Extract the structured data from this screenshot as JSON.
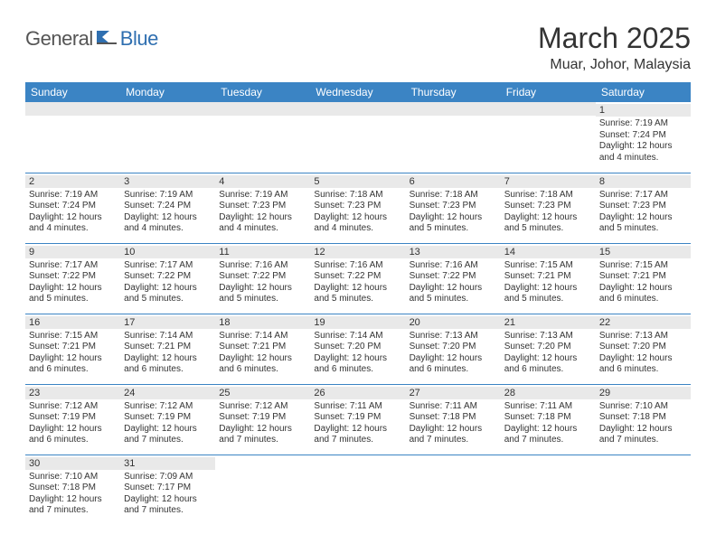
{
  "logo": {
    "word1": "General",
    "word2": "Blue"
  },
  "title": "March 2025",
  "location": "Muar, Johor, Malaysia",
  "colors": {
    "header_bg": "#3b84c4",
    "header_text": "#ffffff",
    "cell_border": "#3b84c4",
    "daynum_bg": "#e9e9e9",
    "text": "#333333",
    "logo_gray": "#555555",
    "logo_blue": "#2f6fb0"
  },
  "weekdays": [
    "Sunday",
    "Monday",
    "Tuesday",
    "Wednesday",
    "Thursday",
    "Friday",
    "Saturday"
  ],
  "weeks": [
    [
      null,
      null,
      null,
      null,
      null,
      null,
      {
        "n": "1",
        "sunrise": "7:19 AM",
        "sunset": "7:24 PM",
        "dl": "12 hours and 4 minutes."
      }
    ],
    [
      {
        "n": "2",
        "sunrise": "7:19 AM",
        "sunset": "7:24 PM",
        "dl": "12 hours and 4 minutes."
      },
      {
        "n": "3",
        "sunrise": "7:19 AM",
        "sunset": "7:24 PM",
        "dl": "12 hours and 4 minutes."
      },
      {
        "n": "4",
        "sunrise": "7:19 AM",
        "sunset": "7:23 PM",
        "dl": "12 hours and 4 minutes."
      },
      {
        "n": "5",
        "sunrise": "7:18 AM",
        "sunset": "7:23 PM",
        "dl": "12 hours and 4 minutes."
      },
      {
        "n": "6",
        "sunrise": "7:18 AM",
        "sunset": "7:23 PM",
        "dl": "12 hours and 5 minutes."
      },
      {
        "n": "7",
        "sunrise": "7:18 AM",
        "sunset": "7:23 PM",
        "dl": "12 hours and 5 minutes."
      },
      {
        "n": "8",
        "sunrise": "7:17 AM",
        "sunset": "7:23 PM",
        "dl": "12 hours and 5 minutes."
      }
    ],
    [
      {
        "n": "9",
        "sunrise": "7:17 AM",
        "sunset": "7:22 PM",
        "dl": "12 hours and 5 minutes."
      },
      {
        "n": "10",
        "sunrise": "7:17 AM",
        "sunset": "7:22 PM",
        "dl": "12 hours and 5 minutes."
      },
      {
        "n": "11",
        "sunrise": "7:16 AM",
        "sunset": "7:22 PM",
        "dl": "12 hours and 5 minutes."
      },
      {
        "n": "12",
        "sunrise": "7:16 AM",
        "sunset": "7:22 PM",
        "dl": "12 hours and 5 minutes."
      },
      {
        "n": "13",
        "sunrise": "7:16 AM",
        "sunset": "7:22 PM",
        "dl": "12 hours and 5 minutes."
      },
      {
        "n": "14",
        "sunrise": "7:15 AM",
        "sunset": "7:21 PM",
        "dl": "12 hours and 5 minutes."
      },
      {
        "n": "15",
        "sunrise": "7:15 AM",
        "sunset": "7:21 PM",
        "dl": "12 hours and 6 minutes."
      }
    ],
    [
      {
        "n": "16",
        "sunrise": "7:15 AM",
        "sunset": "7:21 PM",
        "dl": "12 hours and 6 minutes."
      },
      {
        "n": "17",
        "sunrise": "7:14 AM",
        "sunset": "7:21 PM",
        "dl": "12 hours and 6 minutes."
      },
      {
        "n": "18",
        "sunrise": "7:14 AM",
        "sunset": "7:21 PM",
        "dl": "12 hours and 6 minutes."
      },
      {
        "n": "19",
        "sunrise": "7:14 AM",
        "sunset": "7:20 PM",
        "dl": "12 hours and 6 minutes."
      },
      {
        "n": "20",
        "sunrise": "7:13 AM",
        "sunset": "7:20 PM",
        "dl": "12 hours and 6 minutes."
      },
      {
        "n": "21",
        "sunrise": "7:13 AM",
        "sunset": "7:20 PM",
        "dl": "12 hours and 6 minutes."
      },
      {
        "n": "22",
        "sunrise": "7:13 AM",
        "sunset": "7:20 PM",
        "dl": "12 hours and 6 minutes."
      }
    ],
    [
      {
        "n": "23",
        "sunrise": "7:12 AM",
        "sunset": "7:19 PM",
        "dl": "12 hours and 6 minutes."
      },
      {
        "n": "24",
        "sunrise": "7:12 AM",
        "sunset": "7:19 PM",
        "dl": "12 hours and 7 minutes."
      },
      {
        "n": "25",
        "sunrise": "7:12 AM",
        "sunset": "7:19 PM",
        "dl": "12 hours and 7 minutes."
      },
      {
        "n": "26",
        "sunrise": "7:11 AM",
        "sunset": "7:19 PM",
        "dl": "12 hours and 7 minutes."
      },
      {
        "n": "27",
        "sunrise": "7:11 AM",
        "sunset": "7:18 PM",
        "dl": "12 hours and 7 minutes."
      },
      {
        "n": "28",
        "sunrise": "7:11 AM",
        "sunset": "7:18 PM",
        "dl": "12 hours and 7 minutes."
      },
      {
        "n": "29",
        "sunrise": "7:10 AM",
        "sunset": "7:18 PM",
        "dl": "12 hours and 7 minutes."
      }
    ],
    [
      {
        "n": "30",
        "sunrise": "7:10 AM",
        "sunset": "7:18 PM",
        "dl": "12 hours and 7 minutes."
      },
      {
        "n": "31",
        "sunrise": "7:09 AM",
        "sunset": "7:17 PM",
        "dl": "12 hours and 7 minutes."
      },
      null,
      null,
      null,
      null,
      null
    ]
  ],
  "labels": {
    "sunrise": "Sunrise:",
    "sunset": "Sunset:",
    "daylight": "Daylight:"
  }
}
